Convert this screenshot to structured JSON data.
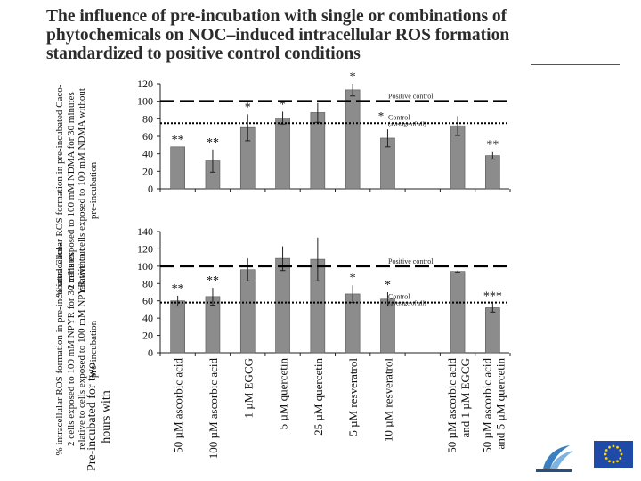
{
  "slide": {
    "title": "The influence of pre-incubation with single or combinations of phytochemicals on NOC–induced intracellular ROS formation standardized to positive control conditions",
    "preincubated_label": "Pre-incubated for two hours with"
  },
  "colors": {
    "bar": "#8c8c8c",
    "axis": "#222222",
    "positive_line": "#000000",
    "control_line": "#000000"
  },
  "logos": {
    "eu_flag": "eu-flag-icon",
    "fp7": "fp7-logo-icon"
  },
  "chart_data": [
    {
      "type": "bar",
      "title": "",
      "ylabel": "% intracellular ROS formation in pre-incubated Caco-2 cells exposed to 100 mM NDMA for 30 minutes relative to cells exposed to 100 mM NDMA without pre-incubation",
      "ylim": [
        0,
        120
      ],
      "yticks": [
        0,
        20,
        40,
        60,
        80,
        100,
        120
      ],
      "categories": [
        "50 µM ascorbic acid",
        "100 µM ascorbic acid",
        "1 µM EGCG",
        "5 µM quercetin",
        "25 µM quercetin",
        "5 µM resveratrol",
        "10 µM resveratrol",
        "",
        "50 µM ascorbic acid and 1 µM EGCG",
        "50 µM ascorbic acid and 5 µM quercetin"
      ],
      "values": [
        48,
        32,
        70,
        81,
        87,
        113,
        58,
        null,
        72,
        38
      ],
      "errors": [
        0,
        13,
        15,
        7,
        11,
        7,
        10,
        null,
        11,
        4
      ],
      "markers": [
        "**",
        "**",
        "*",
        "*",
        "",
        "*",
        "",
        "",
        "",
        "**"
      ],
      "reference_lines": [
        {
          "name": "Positive control",
          "value": 100,
          "style": "dashed"
        },
        {
          "name": "Control",
          "sub": "(average of all)",
          "value": 75,
          "style": "dotted",
          "marker": "*"
        }
      ]
    },
    {
      "type": "bar",
      "title": "",
      "ylabel": "% intracellular ROS formation in pre-incubated Caco-2 cells exposed to 100 mM NPYR for 30 minutes relative to cells exposed to 100 mM NPYR without pre-incubation",
      "ylim": [
        0,
        140
      ],
      "yticks": [
        0,
        20,
        40,
        60,
        80,
        100,
        120,
        140
      ],
      "categories": [
        "50 µM ascorbic acid",
        "100 µM ascorbic acid",
        "1 µM EGCG",
        "5 µM quercetin",
        "25 µM quercetin",
        "5 µM resveratrol",
        "10 µM resveratrol",
        "",
        "50 µM ascorbic acid and 1 µM EGCG",
        "50 µM ascorbic acid and 5 µM quercetin"
      ],
      "values": [
        60,
        65,
        96,
        109,
        108,
        68,
        62,
        null,
        94,
        52
      ],
      "errors": [
        6,
        10,
        13,
        14,
        25,
        10,
        8,
        null,
        1,
        5
      ],
      "markers": [
        "**",
        "**",
        "",
        "",
        "",
        "*",
        "*",
        "",
        "",
        "***"
      ],
      "reference_lines": [
        {
          "name": "Positive control",
          "value": 100,
          "style": "dashed"
        },
        {
          "name": "Control",
          "sub": "(average of all)",
          "value": 58,
          "style": "dotted"
        }
      ]
    }
  ]
}
